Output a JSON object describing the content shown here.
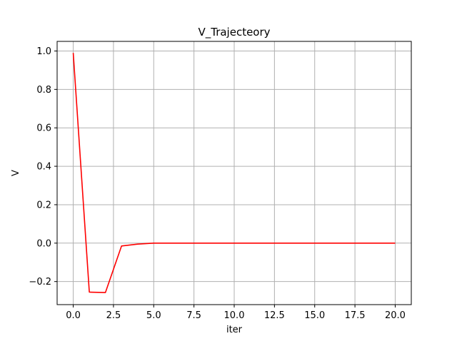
{
  "chart_data": {
    "type": "line",
    "title": "V_Trajecteory",
    "xlabel": "iter",
    "ylabel": "V",
    "xlim": [
      -1.0,
      21.0
    ],
    "ylim": [
      -0.32,
      1.05
    ],
    "xticks": [
      0.0,
      2.5,
      5.0,
      7.5,
      10.0,
      12.5,
      15.0,
      17.5,
      20.0
    ],
    "xtick_labels": [
      "0.0",
      "2.5",
      "5.0",
      "7.5",
      "10.0",
      "12.5",
      "15.0",
      "17.5",
      "20.0"
    ],
    "yticks": [
      -0.2,
      0.0,
      0.2,
      0.4,
      0.6,
      0.8,
      1.0
    ],
    "ytick_labels": [
      "−0.2",
      "0.0",
      "0.2",
      "0.4",
      "0.6",
      "0.8",
      "1.0"
    ],
    "grid": true,
    "series": [
      {
        "color": "#ff0000",
        "x": [
          0,
          1,
          2,
          3,
          4,
          5,
          6,
          7,
          8,
          9,
          10,
          11,
          12,
          13,
          14,
          15,
          16,
          17,
          18,
          19,
          20
        ],
        "y": [
          0.99,
          -0.255,
          -0.257,
          -0.015,
          -0.005,
          0.0,
          0.0,
          0.0,
          0.0,
          0.0,
          0.0,
          0.0,
          0.0,
          0.0,
          0.0,
          0.0,
          0.0,
          0.0,
          0.0,
          0.0,
          0.0
        ]
      }
    ]
  }
}
